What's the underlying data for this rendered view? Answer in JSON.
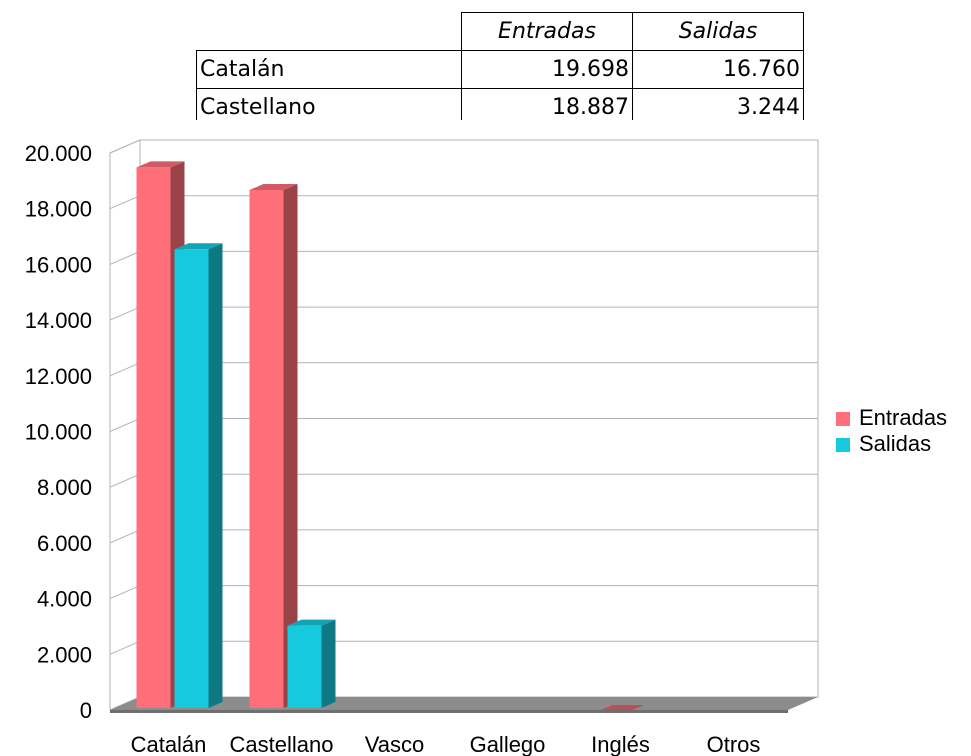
{
  "table": {
    "headers": [
      "",
      "Entradas",
      "Salidas"
    ],
    "rows": [
      {
        "label": "Catalán",
        "entradas": "19.698",
        "salidas": "16.760"
      },
      {
        "label": "Castellano",
        "entradas": "18.887",
        "salidas": "3.244"
      }
    ]
  },
  "chart_data": {
    "type": "bar",
    "style": "3d-clustered-column",
    "categories": [
      "Catalán",
      "Castellano",
      "Vasco",
      "Gallego",
      "Inglés",
      "Otros"
    ],
    "series": [
      {
        "name": "Entradas",
        "color": "#ff6f7a",
        "values": [
          19698,
          18887,
          0,
          0,
          0,
          0
        ]
      },
      {
        "name": "Salidas",
        "color": "#17c9dc",
        "values": [
          16760,
          3244,
          0,
          0,
          0,
          0
        ]
      }
    ],
    "ylim": [
      0,
      20000
    ],
    "yticks": [
      "0",
      "2.000",
      "4.000",
      "6.000",
      "8.000",
      "10.000",
      "12.000",
      "14.000",
      "16.000",
      "18.000",
      "20.000"
    ],
    "grid": true,
    "legend": "right"
  }
}
